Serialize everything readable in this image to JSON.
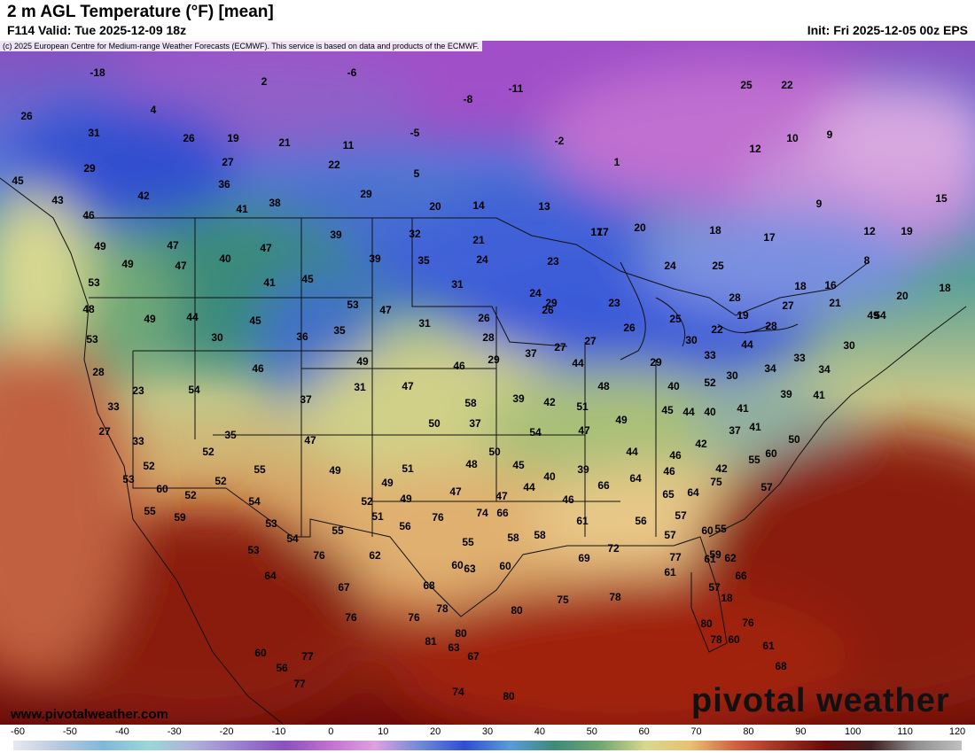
{
  "header": {
    "title": "2 m AGL Temperature (°F) [mean]",
    "valid": "F114 Valid: Tue 2025-12-09 18z",
    "init": "Init: Fri 2025-12-05 00z EPS"
  },
  "map": {
    "credit": "(c) 2025 European Centre for Medium-range Weather Forecasts (ECMWF). This service is based on data and products of the ECMWF.",
    "site": "www.pivotalweather.com",
    "logo": "pivotal weather",
    "temperature_labels": [
      "-18",
      "2",
      "-6",
      "-8",
      "-11",
      "4",
      "26",
      "31",
      "26",
      "19",
      "21",
      "11",
      "22",
      "-5",
      "-2",
      "5",
      "1",
      "25",
      "22",
      "10",
      "9",
      "12",
      "29",
      "42",
      "43",
      "45",
      "36",
      "27",
      "41",
      "38",
      "29",
      "20",
      "14",
      "13",
      "17",
      "20",
      "18",
      "17",
      "9",
      "15",
      "12",
      "19",
      "8",
      "46",
      "49",
      "47",
      "40",
      "47",
      "39",
      "32",
      "21",
      "24",
      "23",
      "17",
      "16",
      "20",
      "18",
      "18",
      "49",
      "53",
      "47",
      "41",
      "45",
      "39",
      "35",
      "31",
      "24",
      "26",
      "23",
      "24",
      "25",
      "28",
      "27",
      "21",
      "54",
      "48",
      "49",
      "44",
      "45",
      "53",
      "47",
      "31",
      "26",
      "29",
      "26",
      "25",
      "22",
      "19",
      "28",
      "49",
      "53",
      "30",
      "36",
      "35",
      "28",
      "27",
      "27",
      "29",
      "30",
      "33",
      "44",
      "37",
      "29",
      "28",
      "23",
      "54",
      "46",
      "49",
      "46",
      "44",
      "48",
      "40",
      "52",
      "30",
      "34",
      "33",
      "34",
      "30",
      "33",
      "27",
      "37",
      "31",
      "47",
      "58",
      "39",
      "42",
      "51",
      "49",
      "45",
      "44",
      "40",
      "41",
      "39",
      "41",
      "33",
      "35",
      "47",
      "50",
      "37",
      "54",
      "47",
      "44",
      "46",
      "42",
      "37",
      "41",
      "60",
      "50",
      "52",
      "52",
      "49",
      "50",
      "48",
      "45",
      "40",
      "39",
      "64",
      "46",
      "42",
      "55",
      "53",
      "55",
      "52",
      "51",
      "49",
      "47",
      "47",
      "44",
      "46",
      "66",
      "65",
      "64",
      "75",
      "57",
      "60",
      "54",
      "52",
      "52",
      "53",
      "51",
      "49",
      "76",
      "74",
      "66",
      "61",
      "56",
      "57",
      "59",
      "55",
      "54",
      "55",
      "56",
      "55",
      "58",
      "58",
      "72",
      "57",
      "60",
      "55",
      "59",
      "53",
      "76",
      "62",
      "60",
      "63",
      "69",
      "77",
      "61",
      "61",
      "62",
      "66",
      "64",
      "67",
      "68",
      "75",
      "78",
      "80",
      "60",
      "57",
      "18",
      "76",
      "76",
      "81",
      "78",
      "80",
      "63",
      "67",
      "74",
      "80",
      "78",
      "76",
      "60",
      "56",
      "77",
      "77",
      "80",
      "60",
      "61",
      "68"
    ]
  },
  "legend": {
    "ticks": [
      "-60",
      "-50",
      "-40",
      "-30",
      "-20",
      "-10",
      "0",
      "10",
      "20",
      "30",
      "40",
      "50",
      "60",
      "70",
      "80",
      "90",
      "100",
      "110",
      "120"
    ],
    "colors": [
      "#e8e8f0",
      "#b8c8e0",
      "#7fb8d8",
      "#9ad8d8",
      "#b0b0d8",
      "#9a80d0",
      "#8a50c0",
      "#c070d0",
      "#e0a0e0",
      "#6f8ad8",
      "#2f4fd0",
      "#5a9ad8",
      "#3f8a7a",
      "#6fa870",
      "#d8d890",
      "#e8c070",
      "#d06040",
      "#a03020",
      "#6a0a0a",
      "#402020",
      "#909090",
      "#c0c0c0"
    ]
  }
}
